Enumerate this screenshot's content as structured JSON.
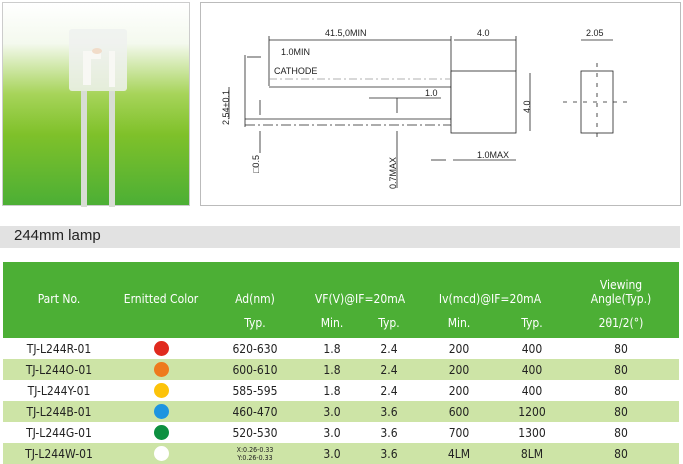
{
  "drawing": {
    "length": "41.5,0MIN",
    "lead_offset": "1.0MIN",
    "cathode": "CATHODE",
    "body_width": "4.0",
    "body_height": "4.0",
    "pitch": "2.54±0.1",
    "gap": "1.0",
    "lead_square": "□0.5",
    "lead_max": "0.7MAX",
    "standoff": "1.0MAX",
    "side_width": "2.05"
  },
  "section_title": "244mm lamp",
  "table": {
    "headers": {
      "part": "Part No.",
      "color": "Ernitted Color",
      "ad": "Ad(nm)",
      "ad_sub": "Typ.",
      "vf": "VF(V)@IF=20mA",
      "vf_min": "Min.",
      "vf_typ": "Typ.",
      "iv": "Iv(mcd)@IF=20mA",
      "iv_min": "Min.",
      "iv_typ": "Typ.",
      "angle1": "Viewing",
      "angle2": "Angle(Typ.)",
      "angle_sub": "2θ1/2(°)"
    },
    "rows": [
      {
        "part": "TJ-L244R-01",
        "color": "#e02a1e",
        "ad": "620-630",
        "vf_min": "1.8",
        "vf_typ": "2.4",
        "iv_min": "200",
        "iv_typ": "400",
        "angle": "80"
      },
      {
        "part": "TJ-L244O-01",
        "color": "#ee7a1c",
        "ad": "600-610",
        "vf_min": "1.8",
        "vf_typ": "2.4",
        "iv_min": "200",
        "iv_typ": "400",
        "angle": "80"
      },
      {
        "part": "TJ-L244Y-01",
        "color": "#fcc30a",
        "ad": "585-595",
        "vf_min": "1.8",
        "vf_typ": "2.4",
        "iv_min": "200",
        "iv_typ": "400",
        "angle": "80"
      },
      {
        "part": "TJ-L244B-01",
        "color": "#1e94e0",
        "ad": "460-470",
        "vf_min": "3.0",
        "vf_typ": "3.6",
        "iv_min": "600",
        "iv_typ": "1200",
        "angle": "80"
      },
      {
        "part": "TJ-L244G-01",
        "color": "#0d9040",
        "ad": "520-530",
        "vf_min": "3.0",
        "vf_typ": "3.6",
        "iv_min": "700",
        "iv_typ": "1300",
        "angle": "80"
      },
      {
        "part": "TJ-L244W-01",
        "color": "#ffffff",
        "ad": "X:0.26-0.33",
        "ad2": "Y:0.26-0.33",
        "vf_min": "3.0",
        "vf_typ": "3.6",
        "iv_min": "4LM",
        "iv_typ": "8LM",
        "angle": "80"
      }
    ]
  }
}
